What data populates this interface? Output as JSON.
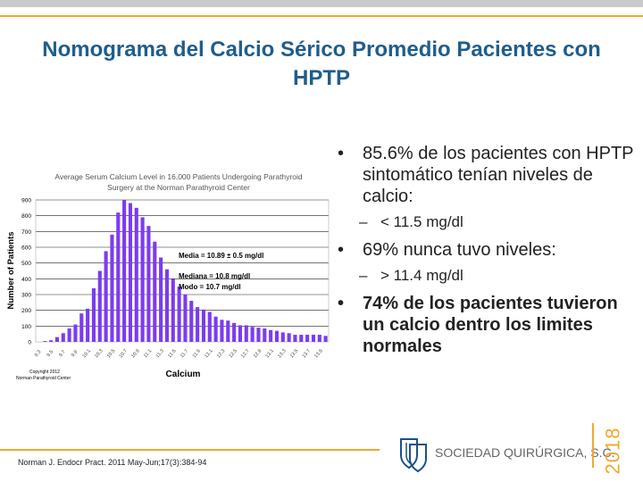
{
  "slide": {
    "title": "Nomograma del Calcio Sérico Promedio Pacientes con HPTP",
    "bullets": [
      {
        "text": "85.6% de los pacientes con HPTP sintomático tenían niveles de calcio:",
        "sub": "< 11.5 mg/dl"
      },
      {
        "text": "69% nunca tuvo niveles:",
        "sub": "> 11.4 mg/dl"
      },
      {
        "text": "74% de los pacientes tuvieron un calcio dentro los limites normales",
        "bold": true
      }
    ],
    "bullet_glyph": "•",
    "dash_glyph": "–",
    "citation": "Norman J. Endocr Pract. 2011 May-Jun;17(3):384-94",
    "logo_text": "SOCIEDAD QUIRÚRGICA, S.C.",
    "year": "2018",
    "colors": {
      "accent": "#f0a830",
      "title": "#1f5d8c",
      "bars": "#7b3cf0"
    }
  },
  "chart_data": {
    "type": "bar",
    "title": "Average Serum Calcium Level in 16,000 Patients Undergoing Parathyroid",
    "title2": "Surgery at the Norman Parathyroid Center",
    "xlabel": "Calcium",
    "ylabel": "Number of Patients",
    "ylim": [
      0,
      900
    ],
    "yticks": [
      "0",
      "100",
      "200",
      "300",
      "400",
      "500",
      "600",
      "700",
      "800",
      "900"
    ],
    "xticks": [
      "9.3",
      "9.5",
      "9.7",
      "9.9",
      "10.1",
      "10.3",
      "10.5",
      "10.7",
      "10.9",
      "11.1",
      "11.3",
      "11.5",
      "11.7",
      "11.9",
      "12.1",
      "12.3",
      "12.5",
      "12.7",
      "12.9",
      "13.1",
      "13.3",
      "13.5",
      "13.7",
      "13.9"
    ],
    "categories": [
      9.3,
      9.4,
      9.5,
      9.6,
      9.7,
      9.8,
      9.9,
      10.0,
      10.1,
      10.2,
      10.3,
      10.4,
      10.5,
      10.6,
      10.7,
      10.8,
      10.9,
      11.0,
      11.1,
      11.2,
      11.3,
      11.4,
      11.5,
      11.6,
      11.7,
      11.8,
      11.9,
      12.0,
      12.1,
      12.2,
      12.3,
      12.4,
      12.5,
      12.6,
      12.7,
      12.8,
      12.9,
      13.0,
      13.1,
      13.2,
      13.3,
      13.4,
      13.5,
      13.6,
      13.7,
      13.8,
      13.9,
      14.0
    ],
    "values": [
      0,
      5,
      10,
      30,
      55,
      85,
      110,
      180,
      210,
      340,
      450,
      575,
      680,
      820,
      900,
      880,
      850,
      790,
      735,
      635,
      535,
      460,
      400,
      350,
      300,
      260,
      220,
      205,
      190,
      160,
      140,
      135,
      120,
      105,
      105,
      95,
      90,
      85,
      75,
      70,
      60,
      55,
      45,
      45,
      45,
      45,
      45,
      38
    ],
    "annotations": [
      "Media = 10.89 ± 0.5 mg/dl",
      "Mediana = 10.8 mg/dl",
      "Modo = 10.7 mg/dl"
    ],
    "copyright": [
      "Copyright 2012",
      "Norman Parathyroid Center"
    ],
    "grid": true
  }
}
